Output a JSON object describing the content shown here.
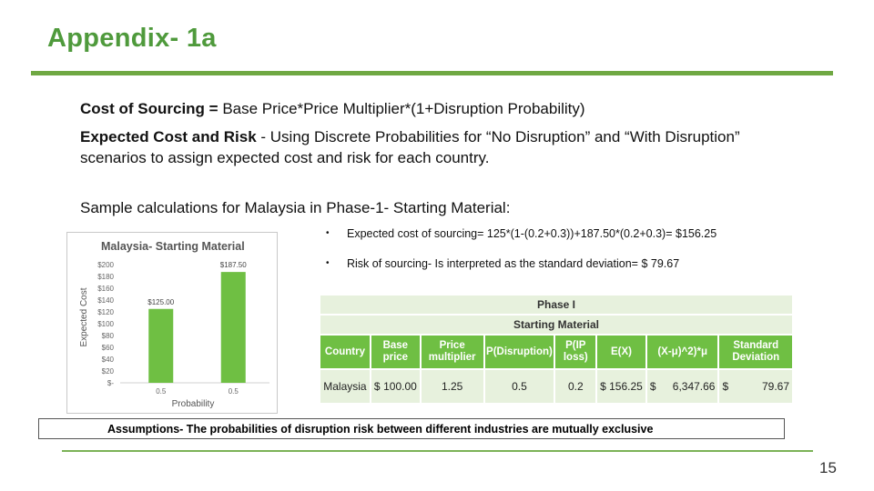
{
  "title": "Appendix- 1a",
  "cost_sourcing": {
    "label": "Cost of Sourcing =",
    "formula": " Base Price*Price Multiplier*(1+Disruption Probability)"
  },
  "expected": {
    "label": "Expected Cost and Risk",
    "text": " - Using Discrete Probabilities for “No Disruption” and “With Disruption” scenarios to assign expected cost and risk for each country."
  },
  "sample_heading": "Sample calculations for Malaysia in Phase-1- Starting Material:",
  "bullets": [
    "Expected cost of sourcing= 125*(1-(0.2+0.3))+187.50*(0.2+0.3)= $156.25",
    "Risk of sourcing- Is interpreted as the standard deviation= $ 79.67"
  ],
  "bullet_symbol": "•",
  "chart_data": {
    "type": "bar",
    "title": "Malaysia- Starting Material",
    "xlabel": "Probability",
    "ylabel": "Expected Cost",
    "categories": [
      "0.5",
      "0.5"
    ],
    "values": [
      125.0,
      187.5
    ],
    "data_labels": [
      "$125.00",
      "$187.50"
    ],
    "ylim": [
      0,
      200
    ],
    "y_ticks": [
      "$-",
      "$20",
      "$40",
      "$60",
      "$80",
      "$100",
      "$120",
      "$140",
      "$160",
      "$180",
      "$200"
    ],
    "bar_color": "#6fbf43",
    "grid": false
  },
  "table": {
    "phase": "Phase I",
    "subtitle": "Starting Material",
    "headers": [
      "Country",
      "Base price",
      "Price multiplier",
      "P(Disruption)",
      "P(IP loss)",
      "E(X)",
      "(X-μ)^2)*μ",
      "Standard Deviation"
    ],
    "row": {
      "country": "Malaysia",
      "base_price_sym": "$",
      "base_price": "100.00",
      "multiplier": "1.25",
      "p_disruption": "0.5",
      "p_ip_loss": "0.2",
      "ex": "$ 156.25",
      "var_sym": "$",
      "var_val": "6,347.66",
      "sd_sym": "$",
      "sd_val": "79.67"
    },
    "header_color": "#6fbf43",
    "cell_color": "#e7f1dd"
  },
  "assumption": "Assumptions- The probabilities of disruption risk between different industries are mutually exclusive",
  "page_number": "15"
}
